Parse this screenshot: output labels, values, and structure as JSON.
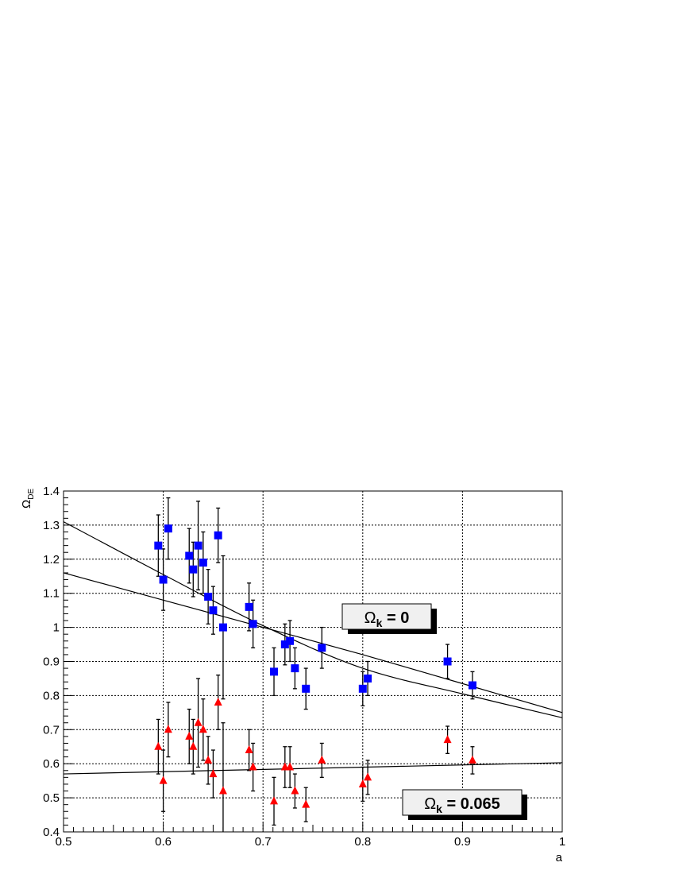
{
  "chart_data": {
    "type": "scatter",
    "title": "",
    "xlabel": "a",
    "ylabel": {
      "main": "Ω",
      "sub": "DE"
    },
    "xlim": [
      0.5,
      1.0
    ],
    "ylim": [
      0.4,
      1.4
    ],
    "xticks": [
      0.5,
      0.6,
      0.7,
      0.8,
      0.9,
      1
    ],
    "xtick_labels": [
      "0.5",
      "0.6",
      "0.7",
      "0.8",
      "0.9",
      "1"
    ],
    "yticks": [
      0.4,
      0.5,
      0.6,
      0.7,
      0.8,
      0.9,
      1.0,
      1.1,
      1.2,
      1.3,
      1.4
    ],
    "ytick_labels": [
      "0.4",
      "0.5",
      "0.6",
      "0.7",
      "0.8",
      "0.9",
      "1",
      "1.1",
      "1.2",
      "1.3",
      "1.4"
    ],
    "grid": true,
    "series": [
      {
        "marker": "square",
        "color": "#0000ff",
        "points": [
          {
            "x": 0.595,
            "y": 1.24,
            "err": 0.09
          },
          {
            "x": 0.6,
            "y": 1.14,
            "err": 0.09
          },
          {
            "x": 0.605,
            "y": 1.29,
            "err": 0.09
          },
          {
            "x": 0.626,
            "y": 1.21,
            "err": 0.08
          },
          {
            "x": 0.63,
            "y": 1.17,
            "err": 0.08
          },
          {
            "x": 0.635,
            "y": 1.24,
            "err": 0.13
          },
          {
            "x": 0.64,
            "y": 1.19,
            "err": 0.09
          },
          {
            "x": 0.645,
            "y": 1.09,
            "err": 0.08
          },
          {
            "x": 0.65,
            "y": 1.05,
            "err": 0.07
          },
          {
            "x": 0.655,
            "y": 1.27,
            "err": 0.08
          },
          {
            "x": 0.66,
            "y": 1.0,
            "err": 0.21
          },
          {
            "x": 0.686,
            "y": 1.06,
            "err": 0.07
          },
          {
            "x": 0.69,
            "y": 1.01,
            "err": 0.07
          },
          {
            "x": 0.711,
            "y": 0.87,
            "err": 0.07
          },
          {
            "x": 0.722,
            "y": 0.95,
            "err": 0.06
          },
          {
            "x": 0.727,
            "y": 0.96,
            "err": 0.06
          },
          {
            "x": 0.732,
            "y": 0.88,
            "err": 0.06
          },
          {
            "x": 0.743,
            "y": 0.82,
            "err": 0.06
          },
          {
            "x": 0.759,
            "y": 0.94,
            "err": 0.06
          },
          {
            "x": 0.8,
            "y": 0.82,
            "err": 0.05
          },
          {
            "x": 0.805,
            "y": 0.85,
            "err": 0.05
          },
          {
            "x": 0.885,
            "y": 0.9,
            "err": 0.05
          },
          {
            "x": 0.91,
            "y": 0.83,
            "err": 0.04
          }
        ]
      },
      {
        "marker": "triangle",
        "color": "#ff0000",
        "points": [
          {
            "x": 0.595,
            "y": 0.65,
            "err": 0.08
          },
          {
            "x": 0.6,
            "y": 0.55,
            "err": 0.09
          },
          {
            "x": 0.605,
            "y": 0.7,
            "err": 0.08
          },
          {
            "x": 0.626,
            "y": 0.68,
            "err": 0.08
          },
          {
            "x": 0.63,
            "y": 0.65,
            "err": 0.08
          },
          {
            "x": 0.635,
            "y": 0.72,
            "err": 0.13
          },
          {
            "x": 0.64,
            "y": 0.7,
            "err": 0.09
          },
          {
            "x": 0.645,
            "y": 0.61,
            "err": 0.07
          },
          {
            "x": 0.65,
            "y": 0.57,
            "err": 0.07
          },
          {
            "x": 0.655,
            "y": 0.78,
            "err": 0.08
          },
          {
            "x": 0.66,
            "y": 0.52,
            "err": 0.2
          },
          {
            "x": 0.686,
            "y": 0.64,
            "err": 0.06
          },
          {
            "x": 0.69,
            "y": 0.59,
            "err": 0.07
          },
          {
            "x": 0.711,
            "y": 0.49,
            "err": 0.07
          },
          {
            "x": 0.722,
            "y": 0.59,
            "err": 0.06
          },
          {
            "x": 0.727,
            "y": 0.59,
            "err": 0.06
          },
          {
            "x": 0.732,
            "y": 0.52,
            "err": 0.05
          },
          {
            "x": 0.743,
            "y": 0.48,
            "err": 0.05
          },
          {
            "x": 0.759,
            "y": 0.61,
            "err": 0.05
          },
          {
            "x": 0.8,
            "y": 0.54,
            "err": 0.05
          },
          {
            "x": 0.805,
            "y": 0.56,
            "err": 0.05
          },
          {
            "x": 0.885,
            "y": 0.67,
            "err": 0.04
          },
          {
            "x": 0.91,
            "y": 0.61,
            "err": 0.04
          }
        ]
      }
    ],
    "fit_lines": [
      {
        "kind": "curve",
        "x": [
          0.5,
          0.6,
          0.7,
          0.8,
          0.9,
          1.0
        ],
        "y": [
          1.31,
          1.155,
          1.005,
          0.88,
          0.805,
          0.735
        ]
      },
      {
        "kind": "curve",
        "x": [
          0.5,
          0.6,
          0.7,
          0.8,
          0.9,
          1.0
        ],
        "y": [
          1.16,
          1.08,
          1.0,
          0.92,
          0.835,
          0.75
        ]
      },
      {
        "kind": "line",
        "x": [
          0.5,
          1.0
        ],
        "y": [
          0.57,
          0.603
        ]
      }
    ],
    "annotations": [
      {
        "main": "Ω",
        "sub": "k",
        "rest": " = 0"
      },
      {
        "main": "Ω",
        "sub": "k",
        "rest": " = 0.065"
      }
    ]
  }
}
